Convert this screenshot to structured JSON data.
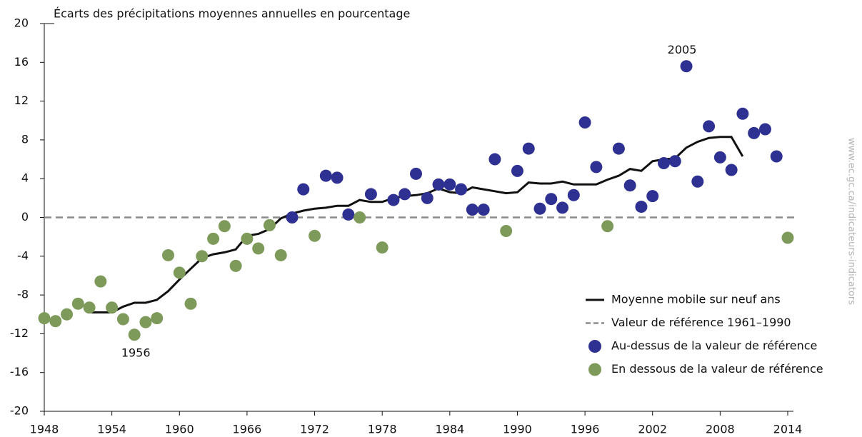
{
  "chart_data": {
    "type": "scatter",
    "title": "Écarts des précipitations moyennes annuelles en pourcentage",
    "watermark": "www.ec.gc.ca/indicateurs-indicators",
    "xlim": [
      1948,
      2014
    ],
    "xticks": [
      1948,
      1954,
      1960,
      1966,
      1972,
      1978,
      1984,
      1990,
      1996,
      2002,
      2008,
      2014
    ],
    "ylim": [
      -20,
      20
    ],
    "yticks": [
      -20,
      -16,
      -12,
      -8,
      -4,
      0,
      4,
      8,
      12,
      16,
      20
    ],
    "grid": false,
    "legend": "bottom-right",
    "reference": {
      "name": "Valeur de référence 1961–1990",
      "value": 0,
      "color": "#8a8a8a"
    },
    "series": [
      {
        "name": "Moyenne mobile sur neuf ans",
        "type": "line",
        "color": "#111111",
        "x": [
          1952,
          1953,
          1954,
          1955,
          1956,
          1957,
          1958,
          1959,
          1960,
          1961,
          1962,
          1963,
          1964,
          1965,
          1966,
          1967,
          1968,
          1969,
          1970,
          1971,
          1972,
          1973,
          1974,
          1975,
          1976,
          1977,
          1978,
          1979,
          1980,
          1981,
          1982,
          1983,
          1984,
          1985,
          1986,
          1987,
          1988,
          1989,
          1990,
          1991,
          1992,
          1993,
          1994,
          1995,
          1996,
          1997,
          1998,
          1999,
          2000,
          2001,
          2002,
          2003,
          2004,
          2005,
          2006,
          2007,
          2008,
          2009,
          2010
        ],
        "values": [
          -9.8,
          -9.8,
          -9.8,
          -9.2,
          -8.8,
          -8.8,
          -8.5,
          -7.6,
          -6.4,
          -5.3,
          -4.2,
          -3.8,
          -3.6,
          -3.3,
          -1.9,
          -1.7,
          -1.2,
          -0.1,
          0.4,
          0.7,
          0.9,
          1.0,
          1.2,
          1.2,
          1.8,
          1.6,
          1.6,
          2.0,
          2.2,
          2.3,
          2.5,
          3.0,
          2.6,
          2.5,
          3.1,
          2.9,
          2.7,
          2.5,
          2.6,
          3.6,
          3.5,
          3.5,
          3.7,
          3.4,
          3.4,
          3.4,
          3.9,
          4.3,
          5.0,
          4.8,
          5.8,
          6.0,
          6.1,
          7.2,
          7.8,
          8.2,
          8.3,
          8.3,
          6.3
        ]
      },
      {
        "name": "Au-dessus de la valeur de référence",
        "type": "scatter",
        "color": "#2e3192",
        "x": [
          1970,
          1971,
          1973,
          1974,
          1975,
          1977,
          1979,
          1980,
          1981,
          1982,
          1983,
          1984,
          1985,
          1986,
          1987,
          1988,
          1990,
          1991,
          1992,
          1993,
          1994,
          1995,
          1996,
          1997,
          1999,
          2000,
          2001,
          2002,
          2003,
          2004,
          2005,
          2006,
          2007,
          2008,
          2009,
          2010,
          2011,
          2012,
          2013
        ],
        "values": [
          0,
          2.9,
          4.3,
          4.1,
          0.3,
          2.4,
          1.8,
          2.4,
          4.5,
          2,
          3.4,
          3.4,
          2.9,
          0.8,
          0.8,
          6,
          4.8,
          7.1,
          0.9,
          1.9,
          1,
          2.3,
          9.8,
          5.2,
          7.1,
          3.3,
          1.1,
          2.2,
          5.6,
          5.8,
          15.6,
          3.7,
          9.4,
          6.2,
          4.9,
          10.7,
          8.7,
          9.1,
          6.3
        ]
      },
      {
        "name": "En dessous de la valeur de référence",
        "type": "scatter",
        "color": "#7d9a5a",
        "x": [
          1948,
          1949,
          1950,
          1951,
          1952,
          1953,
          1954,
          1955,
          1956,
          1957,
          1958,
          1959,
          1960,
          1961,
          1962,
          1963,
          1964,
          1965,
          1966,
          1967,
          1968,
          1969,
          1972,
          1976,
          1978,
          1989,
          1998,
          2014
        ],
        "values": [
          -10.4,
          -10.7,
          -10,
          -8.9,
          -9.3,
          -6.6,
          -9.3,
          -10.5,
          -12.1,
          -10.8,
          -10.4,
          -3.9,
          -5.7,
          -8.9,
          -4,
          -2.2,
          -0.9,
          -5,
          -2.2,
          -3.2,
          -0.8,
          -3.9,
          -1.9,
          0,
          -3.1,
          -1.4,
          -0.9,
          -2.1
        ]
      }
    ],
    "annotations": [
      "1956",
      "2005"
    ]
  }
}
